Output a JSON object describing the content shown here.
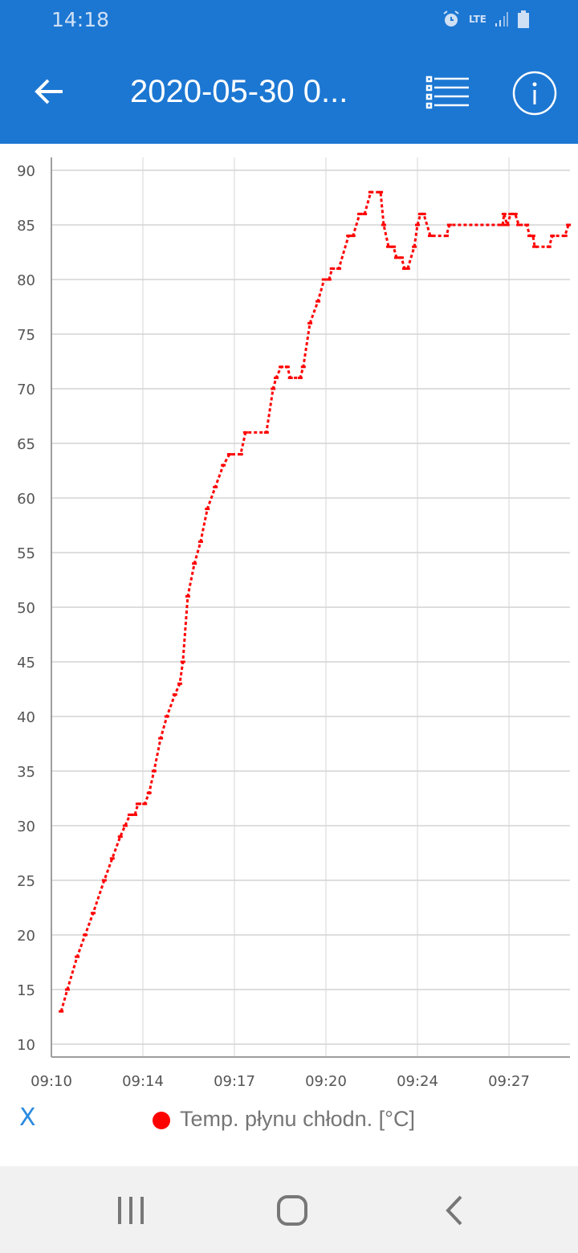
{
  "status_bar": {
    "time": "14:18",
    "network": "LTE",
    "icons": [
      "alarm-icon",
      "lte-icon",
      "signal-icon",
      "battery-icon"
    ]
  },
  "app_bar": {
    "title": "2020-05-30 0...",
    "icons": [
      "back-arrow-icon",
      "list-icon",
      "info-icon"
    ]
  },
  "colors": {
    "app_bar": "#1c77d3",
    "series": "#ff0000",
    "grid": "#c8c8c8"
  },
  "legend": {
    "toggle_label": "X",
    "series_label": "Temp. płynu chłodn. [°C]"
  },
  "chart_data": {
    "type": "line",
    "title": "",
    "xlabel": "",
    "ylabel": "",
    "ylim": [
      10,
      90
    ],
    "y_ticks": [
      10,
      15,
      20,
      25,
      30,
      35,
      40,
      45,
      50,
      55,
      60,
      65,
      70,
      75,
      80,
      85,
      90
    ],
    "x_tick_labels": [
      "09:10",
      "09:14",
      "09:17",
      "09:20",
      "09:24",
      "09:27"
    ],
    "grid": true,
    "legend_position": "bottom",
    "series": [
      {
        "name": "Temp. płynu chłodn. [°C]",
        "color": "#ff0000",
        "points": [
          [
            "09:10:22",
            13
          ],
          [
            "09:10:36",
            15
          ],
          [
            "09:10:58",
            18
          ],
          [
            "09:11:16",
            20
          ],
          [
            "09:11:34",
            22
          ],
          [
            "09:11:59",
            25
          ],
          [
            "09:12:17",
            27
          ],
          [
            "09:12:35",
            29
          ],
          [
            "09:12:46",
            30
          ],
          [
            "09:12:57",
            31
          ],
          [
            "09:13:08",
            31
          ],
          [
            "09:13:15",
            32
          ],
          [
            "09:13:30",
            32
          ],
          [
            "09:13:40",
            33
          ],
          [
            "09:13:51",
            35
          ],
          [
            "09:14:06",
            38
          ],
          [
            "09:14:20",
            40
          ],
          [
            "09:14:38",
            42
          ],
          [
            "09:14:49",
            43
          ],
          [
            "09:14:56",
            45
          ],
          [
            "09:15:07",
            51
          ],
          [
            "09:15:22",
            54
          ],
          [
            "09:15:36",
            56
          ],
          [
            "09:15:51",
            59
          ],
          [
            "09:16:09",
            61
          ],
          [
            "09:16:27",
            63
          ],
          [
            "09:16:41",
            64
          ],
          [
            "09:17:06",
            64
          ],
          [
            "09:17:17",
            66
          ],
          [
            "09:18:04",
            66
          ],
          [
            "09:18:19",
            70
          ],
          [
            "09:18:26",
            71
          ],
          [
            "09:18:37",
            72
          ],
          [
            "09:18:51",
            72
          ],
          [
            "09:18:58",
            71
          ],
          [
            "09:19:20",
            71
          ],
          [
            "09:19:27",
            72
          ],
          [
            "09:19:42",
            76
          ],
          [
            "09:20:00",
            78
          ],
          [
            "09:20:14",
            80
          ],
          [
            "09:20:25",
            80
          ],
          [
            "09:20:32",
            81
          ],
          [
            "09:20:47",
            81
          ],
          [
            "09:21:09",
            84
          ],
          [
            "09:21:19",
            84
          ],
          [
            "09:21:34",
            86
          ],
          [
            "09:21:45",
            86
          ],
          [
            "09:21:59",
            88
          ],
          [
            "09:22:21",
            88
          ],
          [
            "09:22:28",
            85
          ],
          [
            "09:22:39",
            83
          ],
          [
            "09:22:50",
            83
          ],
          [
            "09:22:57",
            82
          ],
          [
            "09:23:08",
            82
          ],
          [
            "09:23:15",
            81
          ],
          [
            "09:23:22",
            81
          ],
          [
            "09:23:37",
            83
          ],
          [
            "09:23:44",
            85
          ],
          [
            "09:23:51",
            86
          ],
          [
            "09:23:58",
            86
          ],
          [
            "09:24:13",
            84
          ],
          [
            "09:24:49",
            84
          ],
          [
            "09:24:56",
            85
          ],
          [
            "09:26:56",
            85
          ],
          [
            "09:26:59",
            86
          ],
          [
            "09:27:06",
            85
          ],
          [
            "09:27:14",
            86
          ],
          [
            "09:27:24",
            86
          ],
          [
            "09:27:32",
            85
          ],
          [
            "09:27:50",
            85
          ],
          [
            "09:27:57",
            84
          ],
          [
            "09:28:04",
            84
          ],
          [
            "09:28:08",
            83
          ],
          [
            "09:28:40",
            83
          ],
          [
            "09:28:48",
            84
          ],
          [
            "09:29:16",
            84
          ],
          [
            "09:29:24",
            85
          ]
        ]
      }
    ]
  }
}
